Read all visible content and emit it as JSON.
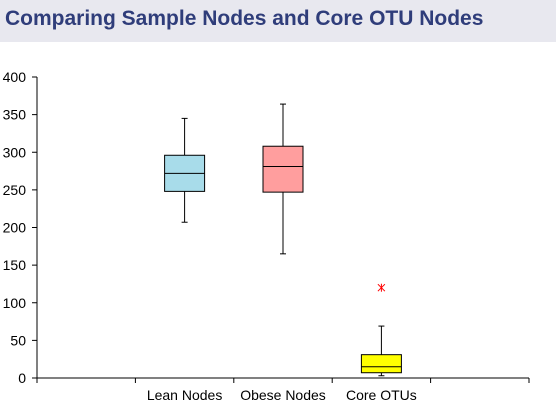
{
  "chart_data": {
    "type": "boxplot",
    "title": "Comparing Sample Nodes and Core OTU Nodes",
    "xlabel": "",
    "ylabel": "",
    "categories": [
      "Lean Nodes",
      "Obese Nodes",
      "Core OTUs"
    ],
    "ylim": [
      0,
      400
    ],
    "yticks": [
      0,
      50,
      100,
      150,
      200,
      250,
      300,
      350,
      400
    ],
    "grid": false,
    "legend": "none",
    "boxes": [
      {
        "category": "Lean Nodes",
        "min": 207,
        "q1": 248,
        "median": 272,
        "q3": 296,
        "max": 345,
        "outliers": [],
        "color": "#a8dcea"
      },
      {
        "category": "Obese Nodes",
        "min": 165,
        "q1": 247,
        "median": 281,
        "q3": 308,
        "max": 364,
        "outliers": [],
        "color": "#ff9e9e"
      },
      {
        "category": "Core OTUs",
        "min": 3,
        "q1": 7,
        "median": 15,
        "q3": 31,
        "max": 69,
        "outliers": [
          120
        ],
        "color": "#ffff00"
      }
    ],
    "outlier_color": "#ff0000"
  }
}
